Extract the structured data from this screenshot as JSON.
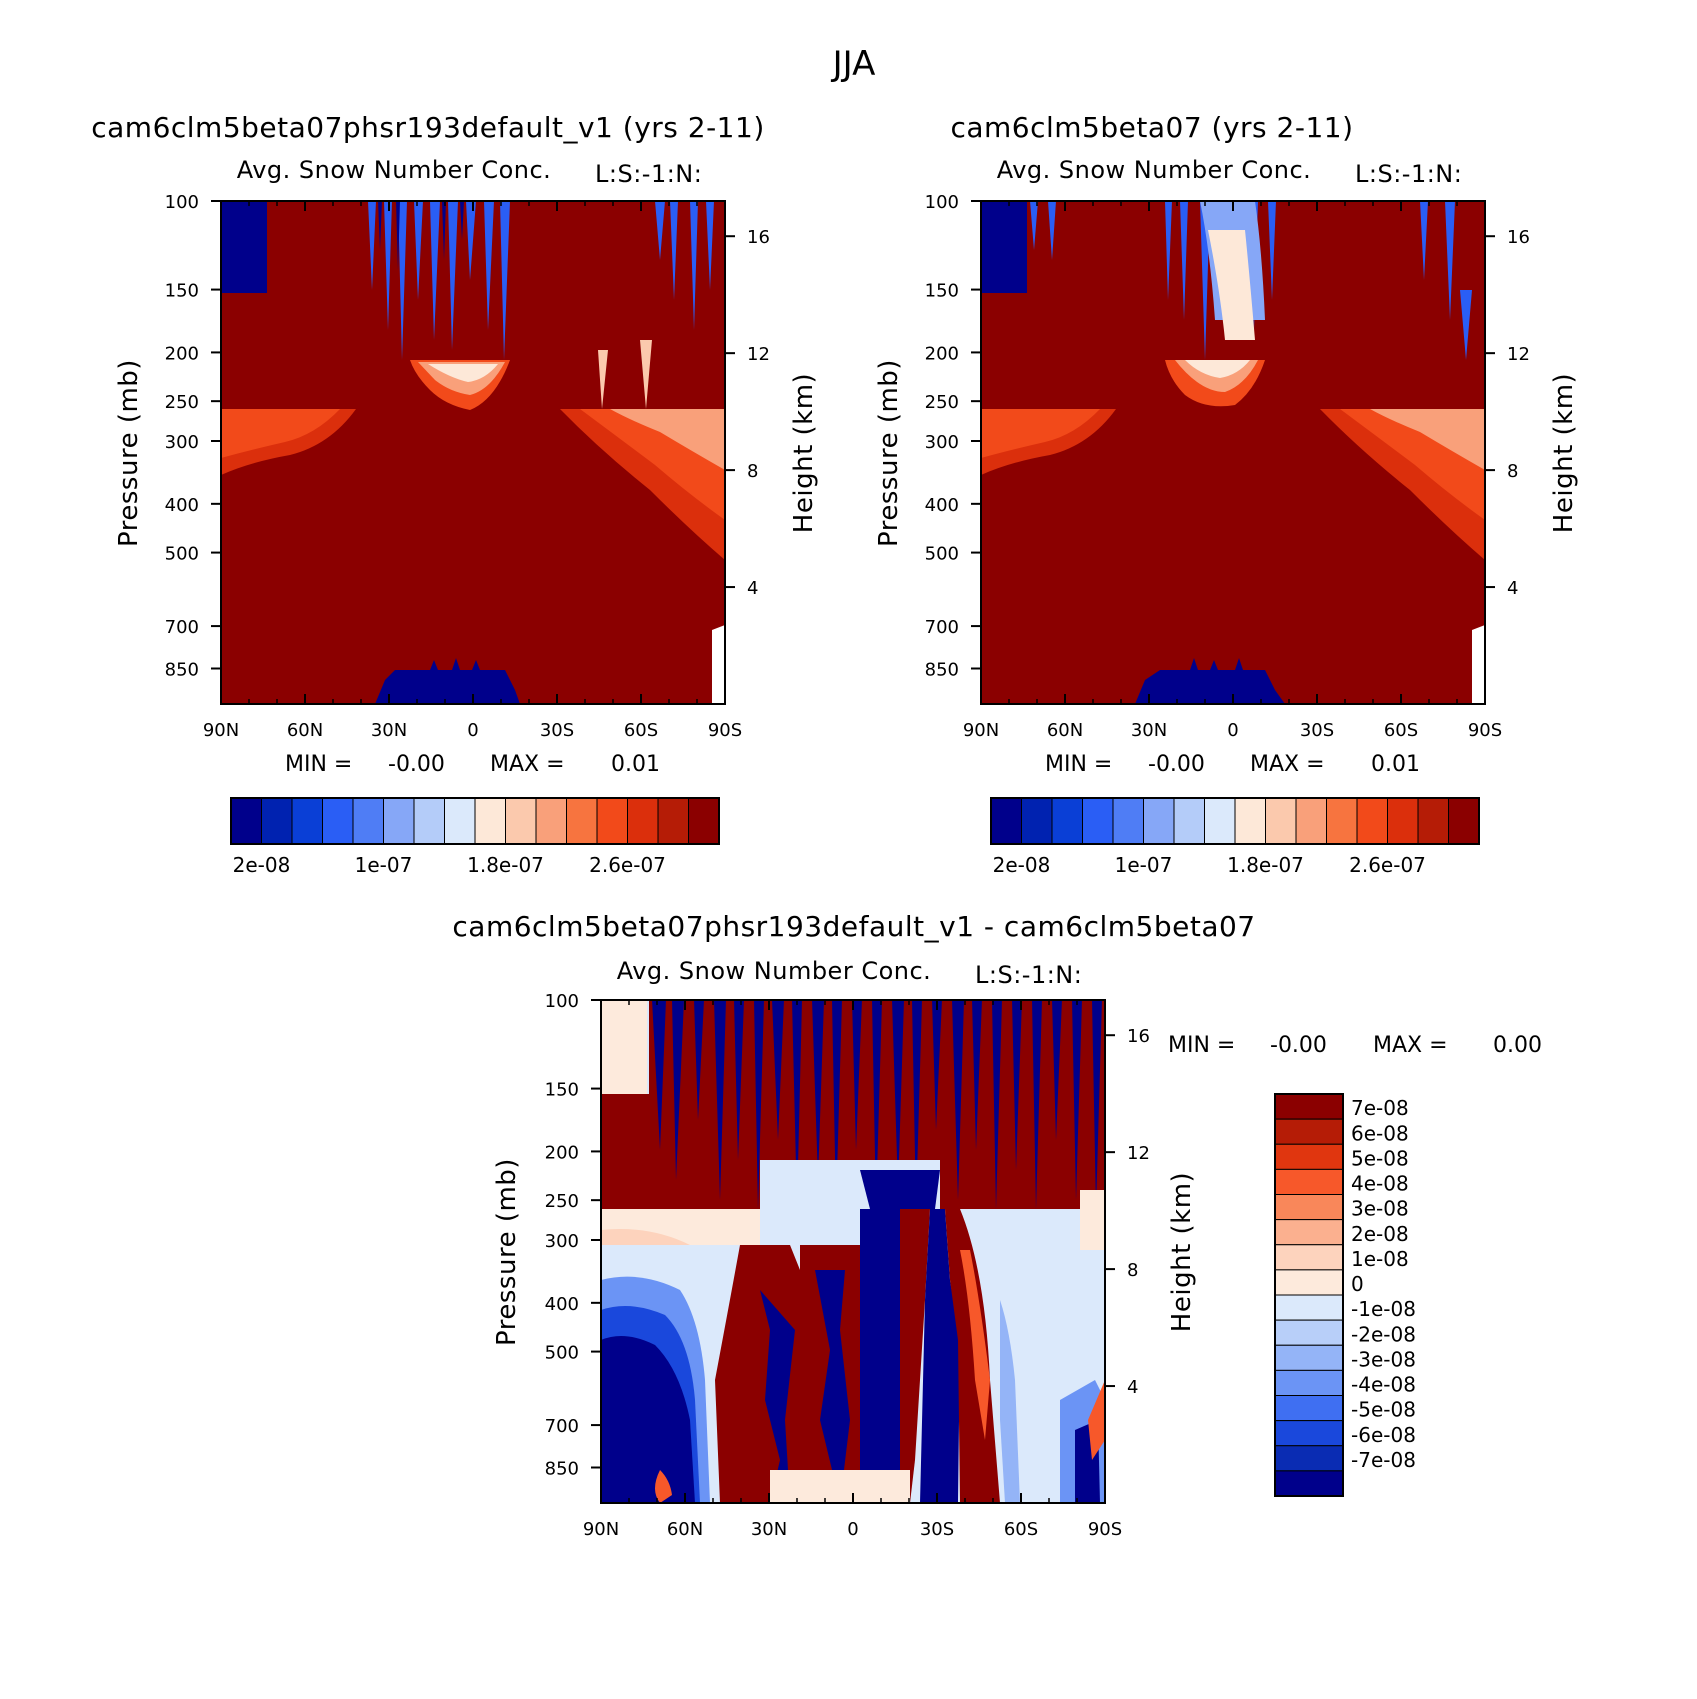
{
  "figure": {
    "title": "JJA"
  },
  "chart_data": [
    {
      "type": "heatmap",
      "id": "panel-test",
      "case_title": "cam6clm5beta07phsr193default_v1 (yrs 2-11)",
      "variable_title": "Avg. Snow Number Conc.",
      "right_string": "L:S:-1:N:",
      "xlabel": "",
      "ylabel": "Pressure (mb)",
      "ylabel_right": "Height (km)",
      "x_ticks": [
        "90N",
        "60N",
        "30N",
        "0",
        "30S",
        "60S",
        "90S"
      ],
      "x_values": [
        90,
        60,
        30,
        0,
        -30,
        -60,
        -90
      ],
      "y_ticks": [
        "100",
        "150",
        "200",
        "250",
        "300",
        "400",
        "500",
        "700",
        "850"
      ],
      "y_values": [
        100,
        150,
        200,
        250,
        300,
        400,
        500,
        700,
        850
      ],
      "y_right_ticks": [
        "16",
        "12",
        "8",
        "4"
      ],
      "y_right_values": [
        16,
        12,
        8,
        4
      ],
      "ylim": [
        100,
        1000
      ],
      "min_label": "MIN =",
      "min_value": "-0.00",
      "max_label": "MAX =",
      "max_value": "0.01",
      "colorbar": {
        "orientation": "horizontal",
        "labels": [
          "2e-08",
          "1e-07",
          "1.8e-07",
          "2.6e-07"
        ],
        "label_values": [
          2e-08,
          1e-07,
          1.8e-07,
          2.6e-07
        ],
        "levels": [
          2e-08,
          4e-08,
          6e-08,
          8e-08,
          1e-07,
          1.2e-07,
          1.4e-07,
          1.6e-07,
          1.8e-07,
          2e-07,
          2.2e-07,
          2.4e-07,
          2.6e-07,
          2.8e-07,
          3e-07
        ],
        "colors": [
          "#00008b",
          "#0022b0",
          "#0a3fd6",
          "#2a5ef5",
          "#4f7df5",
          "#86a7f7",
          "#b4ccf9",
          "#dbe9fb",
          "#fde8d8",
          "#fbc9ad",
          "#f9a07a",
          "#f7743f",
          "#f24a1a",
          "#db2f0c",
          "#b51c06",
          "#8b0000"
        ]
      },
      "regions_description_free": true
    },
    {
      "type": "heatmap",
      "id": "panel-control",
      "case_title": "cam6clm5beta07 (yrs 2-11)",
      "variable_title": "Avg. Snow Number Conc.",
      "right_string": "L:S:-1:N:",
      "xlabel": "",
      "ylabel": "Pressure (mb)",
      "ylabel_right": "Height (km)",
      "x_ticks": [
        "90N",
        "60N",
        "30N",
        "0",
        "30S",
        "60S",
        "90S"
      ],
      "x_values": [
        90,
        60,
        30,
        0,
        -30,
        -60,
        -90
      ],
      "y_ticks": [
        "100",
        "150",
        "200",
        "250",
        "300",
        "400",
        "500",
        "700",
        "850"
      ],
      "y_values": [
        100,
        150,
        200,
        250,
        300,
        400,
        500,
        700,
        850
      ],
      "y_right_ticks": [
        "16",
        "12",
        "8",
        "4"
      ],
      "y_right_values": [
        16,
        12,
        8,
        4
      ],
      "ylim": [
        100,
        1000
      ],
      "min_label": "MIN =",
      "min_value": "-0.00",
      "max_label": "MAX =",
      "max_value": "0.01",
      "colorbar": {
        "orientation": "horizontal",
        "labels": [
          "2e-08",
          "1e-07",
          "1.8e-07",
          "2.6e-07"
        ],
        "label_values": [
          2e-08,
          1e-07,
          1.8e-07,
          2.6e-07
        ],
        "levels": [
          2e-08,
          4e-08,
          6e-08,
          8e-08,
          1e-07,
          1.2e-07,
          1.4e-07,
          1.6e-07,
          1.8e-07,
          2e-07,
          2.2e-07,
          2.4e-07,
          2.6e-07,
          2.8e-07,
          3e-07
        ],
        "colors": [
          "#00008b",
          "#0022b0",
          "#0a3fd6",
          "#2a5ef5",
          "#4f7df5",
          "#86a7f7",
          "#b4ccf9",
          "#dbe9fb",
          "#fde8d8",
          "#fbc9ad",
          "#f9a07a",
          "#f7743f",
          "#f24a1a",
          "#db2f0c",
          "#b51c06",
          "#8b0000"
        ]
      }
    },
    {
      "type": "heatmap",
      "id": "panel-diff",
      "case_title": "cam6clm5beta07phsr193default_v1 - cam6clm5beta07",
      "variable_title": "Avg. Snow Number Conc.",
      "right_string": "L:S:-1:N:",
      "xlabel": "",
      "ylabel": "Pressure (mb)",
      "ylabel_right": "Height (km)",
      "x_ticks": [
        "90N",
        "60N",
        "30N",
        "0",
        "30S",
        "60S",
        "90S"
      ],
      "x_values": [
        90,
        60,
        30,
        0,
        -30,
        -60,
        -90
      ],
      "y_ticks": [
        "100",
        "150",
        "200",
        "250",
        "300",
        "400",
        "500",
        "700",
        "850"
      ],
      "y_values": [
        100,
        150,
        200,
        250,
        300,
        400,
        500,
        700,
        850
      ],
      "y_right_ticks": [
        "16",
        "12",
        "8",
        "4"
      ],
      "y_right_values": [
        16,
        12,
        8,
        4
      ],
      "ylim": [
        100,
        1000
      ],
      "min_label": "MIN =",
      "min_value": "-0.00",
      "max_label": "MAX =",
      "max_value": "0.00",
      "colorbar": {
        "orientation": "vertical",
        "labels": [
          "7e-08",
          "6e-08",
          "5e-08",
          "4e-08",
          "3e-08",
          "2e-08",
          "1e-08",
          "0",
          "-1e-08",
          "-2e-08",
          "-3e-08",
          "-4e-08",
          "-5e-08",
          "-6e-08",
          "-7e-08"
        ],
        "label_values": [
          7e-08,
          6e-08,
          5e-08,
          4e-08,
          3e-08,
          2e-08,
          1e-08,
          0,
          -1e-08,
          -2e-08,
          -3e-08,
          -4e-08,
          -5e-08,
          -6e-08,
          -7e-08
        ],
        "colors": [
          "#8b0000",
          "#b51c06",
          "#e0360f",
          "#f7582a",
          "#f9875a",
          "#fbb08f",
          "#fdd3bd",
          "#fdeadc",
          "#dbe9fb",
          "#b8cff9",
          "#94b4f7",
          "#6b94f5",
          "#3f6ff2",
          "#1a48dc",
          "#0a2cb3",
          "#00008b"
        ]
      }
    }
  ]
}
